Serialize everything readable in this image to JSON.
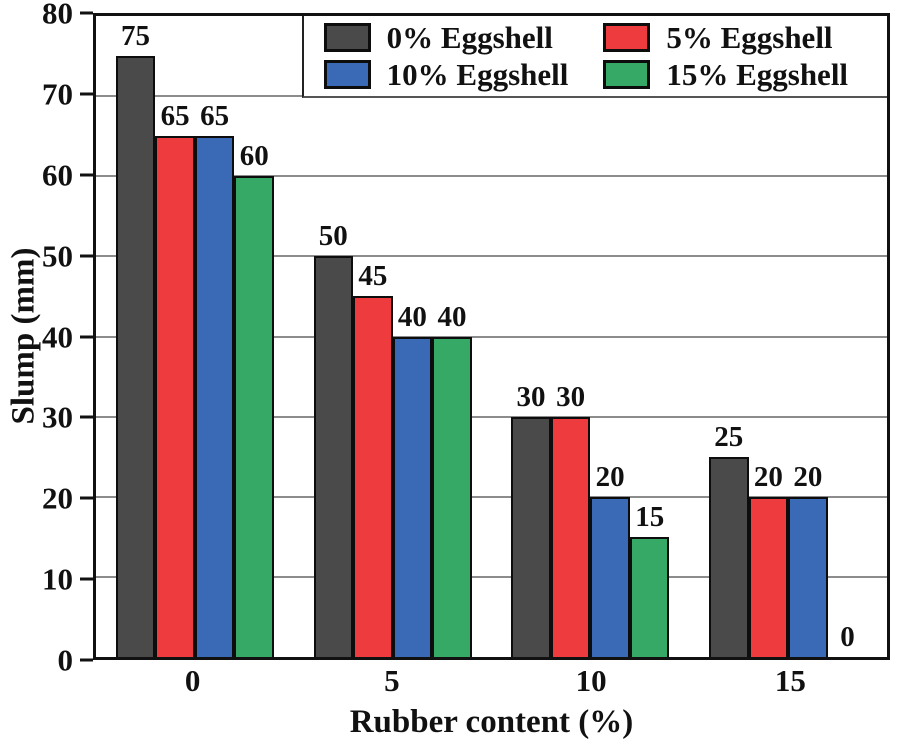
{
  "chart_data": {
    "type": "bar",
    "title": "",
    "xlabel": "Rubber content (%)",
    "ylabel": "Slump (mm)",
    "ylim": [
      0,
      80
    ],
    "ytick_step": 10,
    "categories": [
      "0",
      "5",
      "10",
      "15"
    ],
    "series": [
      {
        "name": "0% Eggshell",
        "color": "#4a4a4a",
        "values": [
          75,
          50,
          30,
          25
        ]
      },
      {
        "name": "5% Eggshell",
        "color": "#ee3c3e",
        "values": [
          65,
          45,
          30,
          20
        ]
      },
      {
        "name": "10% Eggshell",
        "color": "#3a6ab5",
        "values": [
          65,
          40,
          20,
          20
        ]
      },
      {
        "name": "15% Eggshell",
        "color": "#37a966",
        "values": [
          60,
          40,
          15,
          0
        ]
      }
    ],
    "bar_labels": true,
    "grid": "horizontal",
    "gridline_color": "#8c8c8c",
    "legend_position": "top-inside",
    "frame_color": "#111111"
  }
}
